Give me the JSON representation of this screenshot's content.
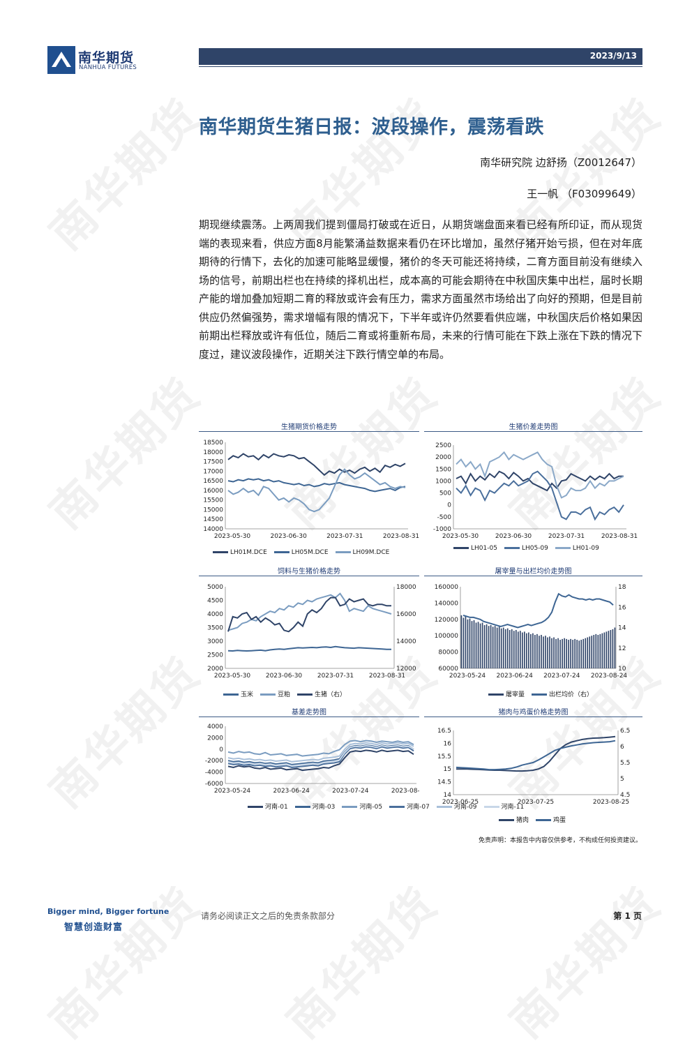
{
  "header": {
    "logo_cn": "南华期货",
    "logo_en": "NANHUA FUTURES",
    "date": "2023/9/13"
  },
  "title": "南华期货生猪日报：波段操作，震荡看跌",
  "authors": [
    "南华研究院 边舒扬（Z0012647）",
    "王一帆 （F03099649）"
  ],
  "body": "期现继续震荡。上两周我们提到僵局打破或在近日，从期货端盘面来看已经有所印证，而从现货端的表现来看，供应方面8月能繁涌益数据来看仍在环比增加，虽然仔猪开始亏损，但在对年底期待的行情下，去化的加速可能略显缓慢，猪价的冬天可能还将持续，二育方面目前没有继续入场的信号，前期出栏也在持续的择机出栏，成本高的可能会期待在中秋国庆集中出栏，届时长期产能的增加叠加短期二育的释放或许会有压力，需求方面虽然市场给出了向好的预期，但是目前供应仍然偏强势，需求增幅有限的情况下，下半年或许仍然要看供应端，中秋国庆后价格如果因前期出栏释放或许有低位，随后二育或将重新布局，未来的行情可能在下跌上涨在下跌的情况下度过，建议波段操作，近期关注下跌行情空单的布局。",
  "charts": {
    "c1": {
      "title": "生猪期货价格走势"
    },
    "c2": {
      "title": "生猪价差走势图"
    },
    "c3": {
      "title": "饲料与生猪价格走势"
    },
    "c4": {
      "title": "屠宰量与出栏均价走势图"
    },
    "c5": {
      "title": "基差走势图"
    },
    "c6": {
      "title": "猪肉与鸡蛋价格走势图"
    }
  },
  "chart_data": [
    {
      "id": "c1",
      "type": "line",
      "title": "生猪期货价格走势",
      "x_ticks": [
        "2023-05-30",
        "2023-06-30",
        "2023-07-31",
        "2023-08-31"
      ],
      "y_ticks": [
        14000,
        14500,
        15000,
        15500,
        16000,
        16500,
        17000,
        17500,
        18000,
        18500
      ],
      "ylim": [
        14000,
        18500
      ],
      "series": [
        {
          "name": "LH01M.DCE",
          "color": "#2f4468",
          "values": [
            17600,
            17800,
            17700,
            17900,
            17750,
            17800,
            17600,
            17850,
            17700,
            17900,
            17800,
            17750,
            17850,
            17800,
            17650,
            17700,
            17500,
            17300,
            17050,
            16800,
            17000,
            16900,
            17100,
            16950,
            17050,
            16900,
            17100,
            17200,
            17000,
            17150,
            16950,
            17300,
            17200,
            17350,
            17250,
            17400
          ]
        },
        {
          "name": "LH05M.DCE",
          "color": "#3d6593",
          "values": [
            16500,
            16450,
            16550,
            16500,
            16600,
            16550,
            16600,
            16500,
            16550,
            16450,
            16500,
            16400,
            16350,
            16300,
            16350,
            16250,
            16300,
            16200,
            16250,
            16350,
            16300,
            16350,
            16400,
            16300,
            16250,
            16200,
            16150,
            16100,
            16000,
            15950,
            16000,
            16050,
            16100,
            16000,
            16150,
            16200
          ]
        },
        {
          "name": "LH09M.DCE",
          "color": "#7a9cc0",
          "values": [
            16000,
            15800,
            15900,
            16100,
            15900,
            16000,
            15750,
            16200,
            16100,
            15800,
            15500,
            15600,
            15400,
            15600,
            15500,
            15300,
            15000,
            14900,
            15000,
            15300,
            15600,
            16200,
            16800,
            17100,
            16800,
            16600,
            16700,
            16900,
            16700,
            16500,
            16300,
            16400,
            16200,
            16100,
            16200,
            16150
          ]
        }
      ]
    },
    {
      "id": "c2",
      "type": "line",
      "title": "生猪价差走势图",
      "x_ticks": [
        "2023-05-30",
        "2023-06-30",
        "2023-07-31",
        "2023-08-31"
      ],
      "y_ticks": [
        -1000,
        -500,
        0,
        500,
        1000,
        1500,
        2000,
        2500
      ],
      "ylim": [
        -1000,
        2500
      ],
      "series": [
        {
          "name": "LH01-05",
          "color": "#2f4468",
          "values": [
            1100,
            1200,
            900,
            1300,
            1000,
            1200,
            1050,
            1300,
            1150,
            1400,
            1300,
            1100,
            1350,
            1200,
            1000,
            1100,
            900,
            800,
            700,
            600,
            900,
            700,
            1000,
            1050,
            1300,
            1200,
            1100,
            1000,
            1200,
            1050,
            1200,
            1100,
            1300,
            1100,
            1200,
            1200
          ]
        },
        {
          "name": "LH05-09",
          "color": "#4a6f9c",
          "values": [
            700,
            500,
            800,
            400,
            700,
            600,
            200,
            600,
            500,
            700,
            900,
            800,
            1000,
            800,
            900,
            1000,
            1300,
            1400,
            1200,
            1000,
            700,
            100,
            -500,
            -600,
            -300,
            -300,
            -400,
            -200,
            -100,
            -600,
            -300,
            -400,
            -200,
            -100,
            -300,
            0
          ]
        },
        {
          "name": "LH01-09",
          "color": "#8aa8c8",
          "values": [
            1700,
            1900,
            1600,
            1800,
            1500,
            1700,
            1200,
            1800,
            1900,
            2000,
            2200,
            1900,
            2100,
            2000,
            1900,
            2000,
            2100,
            2200,
            1900,
            1700,
            1600,
            800,
            300,
            400,
            700,
            600,
            600,
            700,
            1000,
            700,
            900,
            800,
            1000,
            1000,
            1100,
            1200
          ]
        }
      ]
    },
    {
      "id": "c3",
      "type": "line",
      "title": "饲料与生猪价格走势",
      "x_ticks": [
        "2023-05-30",
        "2023-06-30",
        "2023-07-31",
        "2023-08-31"
      ],
      "y_ticks_left": [
        2000,
        2500,
        3000,
        3500,
        4000,
        4500,
        5000
      ],
      "y_ticks_right": [
        12000,
        14000,
        16000,
        18000
      ],
      "ylim_left": [
        2000,
        5000
      ],
      "ylim_right": [
        12000,
        18000
      ],
      "series": [
        {
          "name": "玉米",
          "axis": "left",
          "color": "#3d6593",
          "values": [
            2650,
            2640,
            2660,
            2650,
            2640,
            2650,
            2660,
            2670,
            2650,
            2680,
            2700,
            2710,
            2700,
            2720,
            2740,
            2760,
            2750,
            2760,
            2770,
            2760,
            2780,
            2790,
            2770,
            2800,
            2780,
            2760,
            2750,
            2740,
            2760,
            2750,
            2740,
            2730,
            2720,
            2710,
            2700,
            2700
          ]
        },
        {
          "name": "豆粕",
          "axis": "left",
          "color": "#7a9cc0",
          "values": [
            3400,
            3450,
            3500,
            3650,
            3700,
            3800,
            3750,
            3900,
            4000,
            4100,
            4050,
            4200,
            4150,
            4300,
            4250,
            4400,
            4350,
            4500,
            4450,
            4550,
            4600,
            4650,
            4700,
            4600,
            4750,
            4500,
            4100,
            4200,
            4150,
            4100,
            4300,
            4200,
            4150,
            4100,
            4050,
            4000
          ]
        },
        {
          "name": "生猪（右）",
          "axis": "right",
          "color": "#2f4468",
          "values": [
            14700,
            15800,
            15700,
            16000,
            16100,
            15600,
            15800,
            15400,
            15700,
            15500,
            15200,
            15300,
            14800,
            14700,
            15000,
            15400,
            15100,
            16000,
            16300,
            16100,
            16400,
            16900,
            17200,
            17200,
            16600,
            16700,
            17100,
            16900,
            17000,
            17100,
            16700,
            16600,
            16700,
            16700,
            16600,
            16600
          ]
        }
      ]
    },
    {
      "id": "c4",
      "type": "bar",
      "title": "屠宰量与出栏均价走势图",
      "x_ticks": [
        "2023-05-24",
        "2023-06-24",
        "2023-07-24",
        "2023-08-24"
      ],
      "y_ticks_left": [
        60000,
        80000,
        100000,
        120000,
        140000,
        160000
      ],
      "y_ticks_right": [
        10,
        12,
        14,
        16,
        18
      ],
      "ylim_left": [
        60000,
        160000
      ],
      "ylim_right": [
        10,
        18
      ],
      "series": [
        {
          "name": "屠宰量",
          "axis": "left",
          "color": "#2f4468",
          "values": [
            125000,
            122000,
            124000,
            120000,
            121000,
            118000,
            119000,
            116000,
            117000,
            115000,
            116000,
            113000,
            114000,
            112000,
            113000,
            111000,
            112000,
            110000,
            111000,
            109000,
            110000,
            108000,
            109000,
            107000,
            108000,
            106000,
            107000,
            105000,
            106000,
            104000,
            105000,
            103000,
            104000,
            102000,
            103000,
            101000,
            102000,
            100000,
            101000,
            99000,
            100000,
            98000,
            99000,
            97000,
            98000,
            96000,
            97000,
            95000,
            96000,
            97000,
            96000,
            95000,
            96000,
            95000,
            96000,
            95000,
            94000,
            95000,
            96000,
            97000,
            98000,
            99000,
            100000,
            101000,
            102000,
            101000,
            102000,
            103000,
            104000,
            105000,
            106000,
            107000,
            108000,
            110000
          ]
        },
        {
          "name": "出栏均价（右）",
          "axis": "right",
          "color": "#3d6593",
          "values": [
            15.2,
            15.1,
            15.0,
            15.0,
            14.9,
            14.8,
            14.6,
            14.5,
            14.4,
            14.3,
            14.2,
            14.1,
            14.2,
            14.3,
            14.2,
            14.1,
            14.0,
            14.1,
            14.2,
            14.3,
            14.2,
            14.3,
            14.4,
            14.5,
            14.7,
            15.0,
            15.5,
            16.5,
            17.3,
            17.1,
            17.0,
            17.2,
            17.0,
            16.9,
            16.8,
            16.8,
            16.7,
            16.8,
            16.7,
            16.8,
            16.8,
            16.7,
            16.6,
            16.5,
            16.2
          ]
        }
      ]
    },
    {
      "id": "c5",
      "type": "line",
      "title": "基差走势图",
      "x_ticks": [
        "2023-05-24",
        "2023-06-24",
        "2023-07-24",
        "2023-08-24"
      ],
      "y_ticks": [
        -6000,
        -4000,
        -2000,
        0,
        2000,
        4000
      ],
      "ylim": [
        -6000,
        4000
      ],
      "series": [
        {
          "name": "河南-01",
          "color": "#2f4468",
          "values": [
            -3000,
            -3200,
            -2900,
            -3100,
            -3000,
            -3300,
            -3400,
            -3200,
            -3500,
            -3400,
            -3300,
            -3600,
            -3500,
            -3400,
            -3700,
            -3600,
            -3500,
            -3400,
            -3200,
            -3300,
            -2900,
            -2600,
            -1500,
            -500,
            -300,
            -400,
            -200,
            -300,
            -500,
            -200,
            -400,
            -300,
            -200,
            -400,
            -300,
            -900
          ]
        },
        {
          "name": "河南-03",
          "color": "#3d6593",
          "values": [
            -2000,
            -2200,
            -2100,
            -2300,
            -2200,
            -2400,
            -2300,
            -2500,
            -2400,
            -2600,
            -2500,
            -2400,
            -2700,
            -2600,
            -2500,
            -2400,
            -2300,
            -2400,
            -2100,
            -2000,
            -1900,
            -1700,
            -500,
            400,
            600,
            500,
            700,
            600,
            400,
            700,
            500,
            600,
            700,
            500,
            600,
            0
          ]
        },
        {
          "name": "河南-05",
          "color": "#7a9cc0",
          "values": [
            -500,
            -700,
            -400,
            -600,
            -500,
            -800,
            -900,
            -600,
            -1000,
            -900,
            -800,
            -1100,
            -1000,
            -900,
            -1200,
            -1100,
            -1000,
            -900,
            -700,
            -800,
            -400,
            -100,
            800,
            1400,
            1500,
            1300,
            1500,
            1400,
            1200,
            1400,
            1300,
            1200,
            1400,
            1200,
            1300,
            800
          ]
        },
        {
          "name": "河南-07",
          "color": "#4a6f9c",
          "values": [
            -2500,
            -2700,
            -2600,
            -2800,
            -2700,
            -2900,
            -2800,
            -3000,
            -2900,
            -3100,
            -3000,
            -2900,
            -3200,
            -3100,
            -3000,
            -2900,
            -2800,
            -2900,
            -2600,
            -2500,
            -2400,
            -2200,
            -800,
            100,
            300,
            200,
            400,
            300,
            100,
            400,
            200,
            300,
            400,
            200,
            300,
            -300
          ]
        },
        {
          "name": "河南-09",
          "color": "#a9c0da",
          "values": [
            -1500,
            -1700,
            -1600,
            -1800,
            -1700,
            -1900,
            -1800,
            -2000,
            -1900,
            -2100,
            -2000,
            -1900,
            -2200,
            -2100,
            -2000,
            -1900,
            -1800,
            -1900,
            -1600,
            -1500,
            -1400,
            -1200,
            0,
            800,
            1000,
            900,
            1100,
            1000,
            800,
            1100,
            900,
            1000,
            1100,
            900,
            1000,
            500
          ]
        },
        {
          "name": "河南-11",
          "color": "#c8d7e8",
          "values": [
            -2200,
            -2400,
            -2300,
            -2500,
            -2400,
            -2600,
            -2500,
            -2700,
            -2600,
            -2800,
            -2700,
            -2600,
            -2900,
            -2800,
            -2700,
            -2600,
            -2500,
            -2600,
            -2300,
            -2200,
            -2100,
            -1900,
            -600,
            300,
            500,
            400,
            600,
            500,
            300,
            600,
            400,
            500,
            600,
            400,
            500,
            0
          ]
        }
      ]
    },
    {
      "id": "c6",
      "type": "line",
      "title": "猪肉与鸡蛋价格走势图",
      "x_ticks": [
        "2023-06-25",
        "2023-07-25",
        "2023-08-25"
      ],
      "y_ticks_left": [
        14,
        14.5,
        15,
        15.5,
        16,
        16.5
      ],
      "y_ticks_right": [
        4.5,
        5,
        5.5,
        6,
        6.5
      ],
      "ylim_left": [
        14,
        16.5
      ],
      "ylim_right": [
        4.5,
        6.5
      ],
      "series": [
        {
          "name": "猪肉",
          "axis": "left",
          "color": "#2f4468",
          "values": [
            15.0,
            15.0,
            15.0,
            14.99,
            14.98,
            14.97,
            14.96,
            14.95,
            14.95,
            14.94,
            14.93,
            14.92,
            14.92,
            14.93,
            14.95,
            15.0,
            15.1,
            15.3,
            15.55,
            15.8,
            15.95,
            16.05,
            16.1,
            16.15,
            16.18,
            16.2,
            16.21,
            16.22,
            16.24,
            16.26
          ]
        },
        {
          "name": "鸡蛋",
          "axis": "right",
          "color": "#3d6593",
          "values": [
            5.35,
            5.34,
            5.33,
            5.32,
            5.31,
            5.3,
            5.28,
            5.28,
            5.29,
            5.3,
            5.32,
            5.36,
            5.42,
            5.46,
            5.5,
            5.58,
            5.68,
            5.78,
            5.88,
            5.94,
            5.98,
            6.02,
            6.05,
            6.08,
            6.1,
            6.12,
            6.13,
            6.14,
            6.15,
            6.18
          ]
        }
      ]
    }
  ],
  "disclaimer": "免责声明：本报告中内容仅供参考，不构成任何投资建议。",
  "footer": {
    "slogan_en": "Bigger mind, Bigger fortune",
    "slogan_cn": "智慧创造财富",
    "note": "请务必阅读正文之后的免责条款部分",
    "page": "第 1 页"
  }
}
